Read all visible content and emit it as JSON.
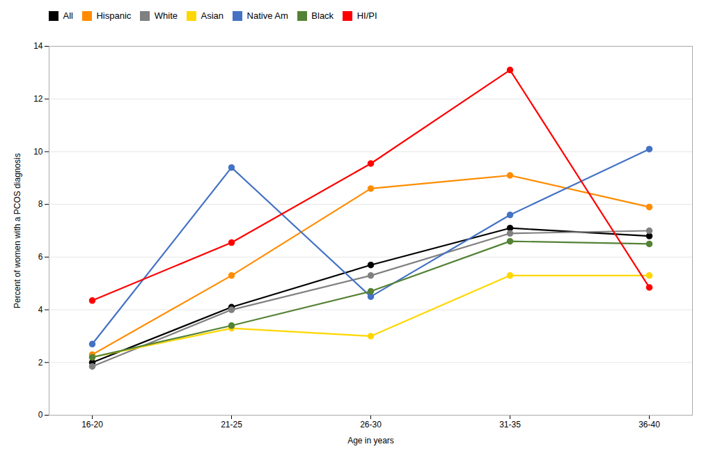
{
  "chart_data": {
    "type": "line",
    "categories": [
      "16-20",
      "21-25",
      "26-30",
      "31-35",
      "36-40"
    ],
    "series": [
      {
        "name": "All",
        "color": "#000000",
        "marker": "circle",
        "values": [
          2.0,
          4.1,
          5.7,
          7.1,
          6.8
        ]
      },
      {
        "name": "Hispanic",
        "color": "#FF8C00",
        "marker": "circle",
        "values": [
          2.3,
          5.3,
          8.6,
          9.1,
          7.9
        ]
      },
      {
        "name": "White",
        "color": "#808080",
        "marker": "circle",
        "values": [
          1.85,
          4.0,
          5.3,
          6.9,
          7.0
        ]
      },
      {
        "name": "Asian",
        "color": "#FFD700",
        "marker": "circle",
        "values": [
          2.2,
          3.3,
          3.0,
          5.3,
          5.3
        ]
      },
      {
        "name": "Native Am",
        "color": "#4472C4",
        "marker": "circle",
        "values": [
          2.7,
          9.4,
          4.5,
          7.6,
          10.1
        ]
      },
      {
        "name": "Black",
        "color": "#548235",
        "marker": "circle",
        "values": [
          2.2,
          3.4,
          4.7,
          6.6,
          6.5
        ]
      },
      {
        "name": "HI/PI",
        "color": "#FF0000",
        "marker": "circle",
        "values": [
          4.35,
          6.55,
          9.55,
          13.1,
          4.85
        ]
      }
    ],
    "xlabel": "Age in years",
    "ylabel": "Percent of women with a PCOS diagnosis",
    "ylim": [
      0,
      14
    ],
    "yticks": [
      0,
      2,
      4,
      6,
      8,
      10,
      12,
      14
    ],
    "grid": true,
    "legend": "top"
  }
}
